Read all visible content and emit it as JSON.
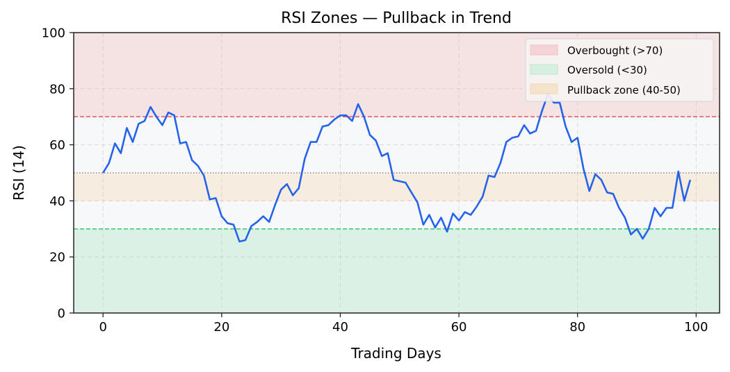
{
  "chart_data": {
    "type": "line",
    "title": "RSI Zones — Pullback in Trend",
    "xlabel": "Trading Days",
    "ylabel": "RSI (14)",
    "xlim": [
      -4.95,
      103.95
    ],
    "ylim": [
      0,
      100
    ],
    "xticks": [
      0,
      20,
      40,
      60,
      80,
      100
    ],
    "yticks": [
      0,
      20,
      40,
      60,
      80,
      100
    ],
    "grid": true,
    "legend_position": "upper right",
    "series": [
      {
        "name": "RSI",
        "color": "#2563eb",
        "x": [
          0,
          1,
          2,
          3,
          4,
          5,
          6,
          7,
          8,
          9,
          10,
          11,
          12,
          13,
          14,
          15,
          16,
          17,
          18,
          19,
          20,
          21,
          22,
          23,
          24,
          25,
          26,
          27,
          28,
          29,
          30,
          31,
          32,
          33,
          34,
          35,
          36,
          37,
          38,
          39,
          40,
          41,
          42,
          43,
          44,
          45,
          46,
          47,
          48,
          49,
          50,
          51,
          52,
          53,
          54,
          55,
          56,
          57,
          58,
          59,
          60,
          61,
          62,
          63,
          64,
          65,
          66,
          67,
          68,
          69,
          70,
          71,
          72,
          73,
          74,
          75,
          76,
          77,
          78,
          79,
          80,
          81,
          82,
          83,
          84,
          85,
          86,
          87,
          88,
          89,
          90,
          91,
          92,
          93,
          94,
          95,
          96,
          97,
          98,
          99
        ],
        "values": [
          50.0,
          53.5,
          60.5,
          57.0,
          66.0,
          61.0,
          67.5,
          68.5,
          73.5,
          70.0,
          67.0,
          71.5,
          70.5,
          60.5,
          61.0,
          54.5,
          52.5,
          49.0,
          40.5,
          41.0,
          34.5,
          32.0,
          31.5,
          25.5,
          26.0,
          31.0,
          32.5,
          34.5,
          32.5,
          38.5,
          44.0,
          46.0,
          42.0,
          44.5,
          55.0,
          61.0,
          61.0,
          66.5,
          67.0,
          69.0,
          70.5,
          70.5,
          68.5,
          74.5,
          70.0,
          63.5,
          61.5,
          56.0,
          57.0,
          47.5,
          47.0,
          46.5,
          43.0,
          39.5,
          31.5,
          35.0,
          30.5,
          34.0,
          29.0,
          35.5,
          33.0,
          36.0,
          35.0,
          38.0,
          41.5,
          49.0,
          48.5,
          53.5,
          61.0,
          62.5,
          63.0,
          67.0,
          64.0,
          65.0,
          72.0,
          78.0,
          75.0,
          75.0,
          66.5,
          61.0,
          62.5,
          51.5,
          43.5,
          49.5,
          47.5,
          43.0,
          42.5,
          37.5,
          34.0,
          28.0,
          30.0,
          26.5,
          30.0,
          37.5,
          34.5,
          37.5,
          37.5,
          50.5,
          40.0,
          47.5
        ]
      }
    ],
    "zones": [
      {
        "name": "Overbought (>70)",
        "from": 70,
        "to": 100,
        "fill": "#f5e3e4",
        "line": 70,
        "line_color": "#e5484d",
        "line_style": "dashed"
      },
      {
        "name": "Oversold (<30)",
        "from": 0,
        "to": 30,
        "fill": "#dcf1e6",
        "line": 30,
        "line_color": "#22c55e",
        "line_style": "dashed"
      },
      {
        "name": "Pullback zone (40-50)",
        "from": 40,
        "to": 50,
        "fill": "#f6ecdf",
        "line": 50,
        "line_color": "#777777",
        "line_style": "dotted"
      }
    ],
    "neutral_fill": "#f7f8fa",
    "legend": [
      {
        "label": "Overbought (>70)",
        "swatch": "#f4d4d6",
        "edge": "#f2bfc2"
      },
      {
        "label": "Oversold (<30)",
        "swatch": "#d6efe0",
        "edge": "#c3e6d1"
      },
      {
        "label": "Pullback zone (40-50)",
        "swatch": "#f6e3cc",
        "edge": "#f1d6b4"
      }
    ]
  }
}
